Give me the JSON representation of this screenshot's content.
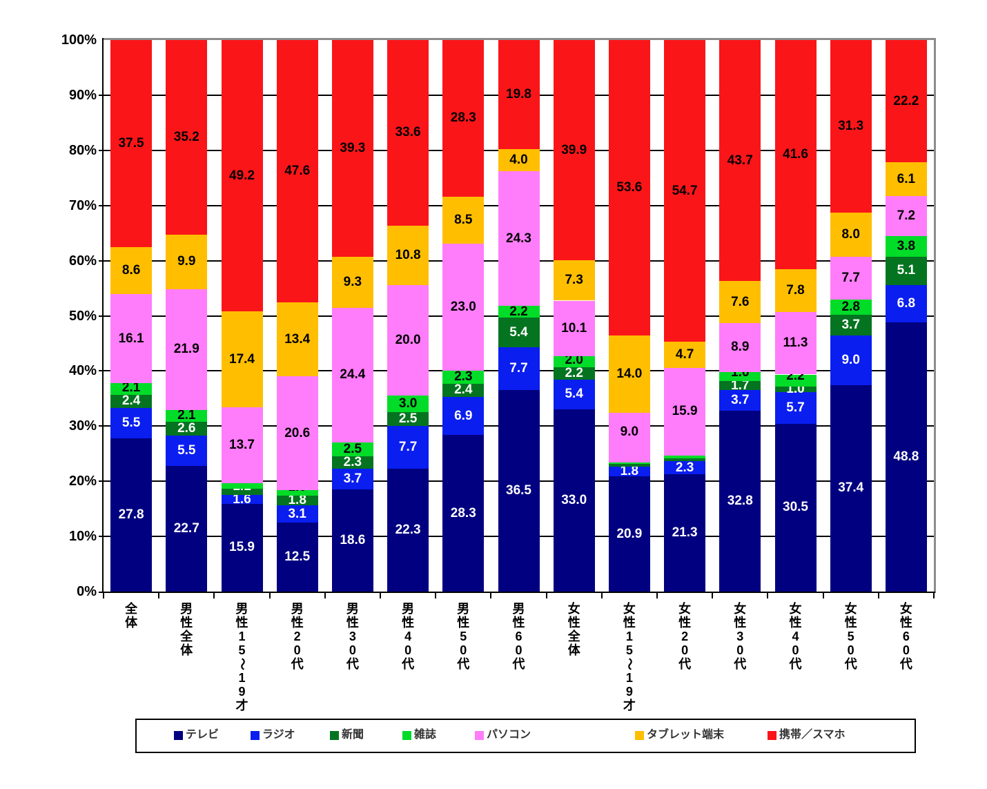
{
  "chart_data": {
    "type": "bar",
    "stacked": true,
    "percent_stacked": true,
    "grid": true,
    "legend_position": "bottom",
    "categories": [
      "全体",
      "男性全体",
      "男性15～19才",
      "男性20代",
      "男性30代",
      "男性40代",
      "男性50代",
      "男性60代",
      "女性全体",
      "女性15～19才",
      "女性20代",
      "女性30代",
      "女性40代",
      "女性50代",
      "女性60代"
    ],
    "series": [
      {
        "name": "テレビ",
        "color": "#000080",
        "label_color": "#ffffff",
        "values": [
          27.8,
          22.7,
          15.9,
          12.5,
          18.6,
          22.3,
          28.3,
          36.5,
          33.0,
          20.9,
          21.3,
          32.8,
          30.5,
          37.4,
          48.8
        ]
      },
      {
        "name": "ラジオ",
        "color": "#0a1ef0",
        "label_color": "#ffffff",
        "values": [
          5.5,
          5.5,
          1.6,
          3.1,
          3.7,
          7.7,
          6.9,
          7.7,
          5.4,
          1.8,
          2.3,
          3.7,
          5.7,
          9.0,
          6.8
        ]
      },
      {
        "name": "新聞",
        "color": "#047420",
        "label_color": "#ffffff",
        "values": [
          2.4,
          2.6,
          1.1,
          1.8,
          2.3,
          2.5,
          2.4,
          5.4,
          2.2,
          0.4,
          0.6,
          1.7,
          1.0,
          3.7,
          5.1
        ]
      },
      {
        "name": "雑誌",
        "color": "#00dc28",
        "label_color": "#000000",
        "values": [
          2.1,
          2.1,
          1.1,
          1.0,
          2.5,
          3.0,
          2.3,
          2.2,
          2.0,
          0.3,
          0.5,
          1.6,
          2.2,
          2.8,
          3.8
        ]
      },
      {
        "name": "パソコン",
        "color": "#ff7dfa",
        "label_color": "#000000",
        "values": [
          16.1,
          21.9,
          13.7,
          20.6,
          24.4,
          20.0,
          23.0,
          24.3,
          10.1,
          9.0,
          15.9,
          8.9,
          11.3,
          7.7,
          7.2
        ]
      },
      {
        "name": "タブレット端末",
        "color": "#ffbe00",
        "label_color": "#000000",
        "values": [
          8.6,
          9.9,
          17.4,
          13.4,
          9.3,
          10.8,
          8.5,
          4.0,
          7.3,
          14.0,
          4.7,
          7.6,
          7.8,
          8.0,
          6.1
        ]
      },
      {
        "name": "携帯／スマホ",
        "color": "#fa1519",
        "label_color": "#000000",
        "values": [
          37.5,
          35.2,
          49.2,
          47.6,
          39.3,
          33.6,
          28.3,
          19.8,
          39.9,
          53.6,
          54.7,
          43.7,
          41.6,
          31.3,
          22.2
        ]
      }
    ],
    "y_axis": {
      "min": 0,
      "max": 100,
      "ticks": [
        "0%",
        "10%",
        "20%",
        "30%",
        "40%",
        "50%",
        "60%",
        "70%",
        "80%",
        "90%",
        "100%"
      ]
    },
    "value_decimals": 1
  }
}
